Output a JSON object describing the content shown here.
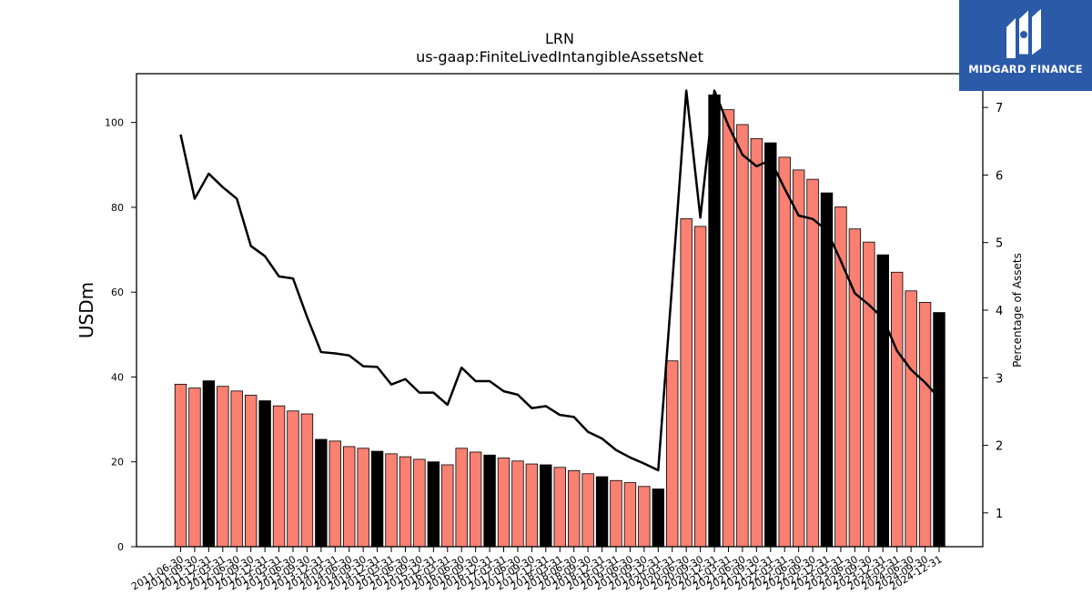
{
  "chart_data": {
    "type": "bar",
    "title": "LRN",
    "subtitle": "us-gaap:FiniteLivedIntangibleAssetsNet",
    "ylabel": "USDm",
    "y2label": "Percentage of Assets",
    "ylim": [
      0,
      111.5
    ],
    "y2lim": [
      0.5,
      7.5
    ],
    "yticks": [
      0,
      20,
      40,
      60,
      80,
      100
    ],
    "y2ticks": [
      1,
      2,
      3,
      4,
      5,
      6,
      7
    ],
    "colors": {
      "bar": "#fa8072",
      "bar_highlight": "#000000",
      "line": "#000000"
    },
    "categories": [
      "2011-06-30",
      "2011-09-30",
      "2011-12-31",
      "2012-03-31",
      "2012-06-30",
      "2012-09-30",
      "2012-12-31",
      "2013-03-31",
      "2013-06-30",
      "2013-09-30",
      "2013-12-31",
      "2014-03-31",
      "2014-06-30",
      "2014-09-30",
      "2014-12-31",
      "2015-03-31",
      "2015-06-30",
      "2015-09-30",
      "2015-12-31",
      "2016-03-31",
      "2016-06-30",
      "2016-09-30",
      "2016-12-31",
      "2017-03-31",
      "2017-06-30",
      "2017-09-30",
      "2017-12-31",
      "2018-03-31",
      "2018-06-30",
      "2018-09-30",
      "2018-12-31",
      "2019-03-31",
      "2019-06-30",
      "2019-09-30",
      "2019-12-31",
      "2020-03-31",
      "2020-06-30",
      "2020-09-30",
      "2020-12-31",
      "2021-03-31",
      "2021-06-30",
      "2021-09-30",
      "2021-12-31",
      "2022-03-31",
      "2022-06-30",
      "2022-09-30",
      "2022-12-31",
      "2023-03-31",
      "2023-06-30",
      "2023-09-30",
      "2023-12-31",
      "2024-03-31",
      "2024-06-30",
      "2024-09-30",
      "2024-12-31"
    ],
    "series": [
      {
        "type": "bar",
        "values": [
          38.3,
          37.4,
          39.1,
          37.8,
          36.7,
          35.7,
          34.4,
          33.2,
          32.0,
          31.3,
          25.3,
          24.9,
          23.6,
          23.2,
          22.5,
          21.9,
          21.2,
          20.6,
          20.0,
          19.3,
          23.2,
          22.3,
          21.6,
          20.9,
          20.2,
          19.5,
          19.3,
          18.7,
          17.9,
          17.2,
          16.5,
          15.6,
          15.1,
          14.2,
          13.6,
          43.8,
          77.3,
          75.5,
          106.5,
          103.0,
          99.5,
          96.2,
          95.2,
          91.8,
          88.8,
          86.6,
          83.4,
          80.1,
          74.9,
          71.8,
          68.8,
          64.7,
          60.3,
          57.6,
          55.2
        ],
        "highlight": [
          false,
          false,
          true,
          false,
          false,
          false,
          true,
          false,
          false,
          false,
          true,
          false,
          false,
          false,
          true,
          false,
          false,
          false,
          true,
          false,
          false,
          false,
          true,
          false,
          false,
          false,
          true,
          false,
          false,
          false,
          true,
          false,
          false,
          false,
          true,
          false,
          false,
          false,
          true,
          false,
          false,
          false,
          true,
          false,
          false,
          false,
          true,
          false,
          false,
          false,
          true,
          false,
          false,
          false,
          true
        ]
      },
      {
        "type": "line",
        "axis": "right",
        "values": [
          6.6,
          5.65,
          6.02,
          5.82,
          5.65,
          4.95,
          4.8,
          4.5,
          4.47,
          3.9,
          3.38,
          3.36,
          3.33,
          3.17,
          3.16,
          2.9,
          2.98,
          2.78,
          2.78,
          2.6,
          3.15,
          2.95,
          2.95,
          2.8,
          2.75,
          2.55,
          2.58,
          2.45,
          2.42,
          2.2,
          2.1,
          1.93,
          1.82,
          1.73,
          1.63,
          4.4,
          7.25,
          5.37,
          7.25,
          6.73,
          6.3,
          6.13,
          6.22,
          5.8,
          5.4,
          5.35,
          5.18,
          4.73,
          4.25,
          4.08,
          3.88,
          3.4,
          3.12,
          2.93,
          2.7
        ]
      }
    ]
  },
  "brand": {
    "name": "MIDGARD FINANCE",
    "icon": "midgard-logo-icon"
  }
}
